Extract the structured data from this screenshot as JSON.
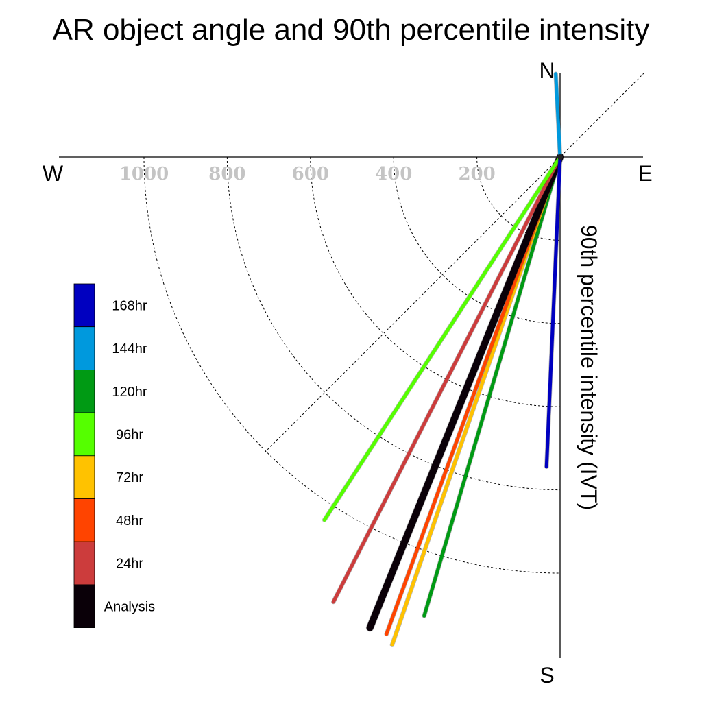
{
  "chart_data": {
    "type": "polar-vector",
    "title": "AR object angle and 90th percentile intensity",
    "radial_label": "90th percentile intensity (IVT)",
    "compass": {
      "north": "N",
      "south": "S",
      "east": "E",
      "west": "W"
    },
    "radial_ticks": [
      200,
      400,
      600,
      800,
      1000
    ],
    "radial_tick_labels": [
      "200",
      "400",
      "600",
      "800",
      "1000"
    ],
    "grid": true,
    "legend_placement": "left",
    "series": [
      {
        "name": "168hr",
        "color": "#0000C0",
        "angle_deg": 182.5,
        "intensity": 745
      },
      {
        "name": "144hr",
        "color": "#0099DD",
        "angle_deg": 357.0,
        "intensity": 200
      },
      {
        "name": "120hr",
        "color": "#009A14",
        "angle_deg": 196.5,
        "intensity": 1150
      },
      {
        "name": "96hr",
        "color": "#55FF00",
        "angle_deg": 213.0,
        "intensity": 1040
      },
      {
        "name": "72hr",
        "color": "#FFC200",
        "angle_deg": 199.0,
        "intensity": 1240
      },
      {
        "name": "48hr",
        "color": "#FF4400",
        "angle_deg": 200.0,
        "intensity": 1220
      },
      {
        "name": "24hr",
        "color": "#CC3C3C",
        "angle_deg": 207.0,
        "intensity": 1200
      },
      {
        "name": "Analysis",
        "color": "#0A0008",
        "angle_deg": 202.0,
        "intensity": 1220
      }
    ],
    "legend_order": [
      "168hr",
      "144hr",
      "120hr",
      "96hr",
      "72hr",
      "48hr",
      "24hr",
      "Analysis"
    ]
  }
}
